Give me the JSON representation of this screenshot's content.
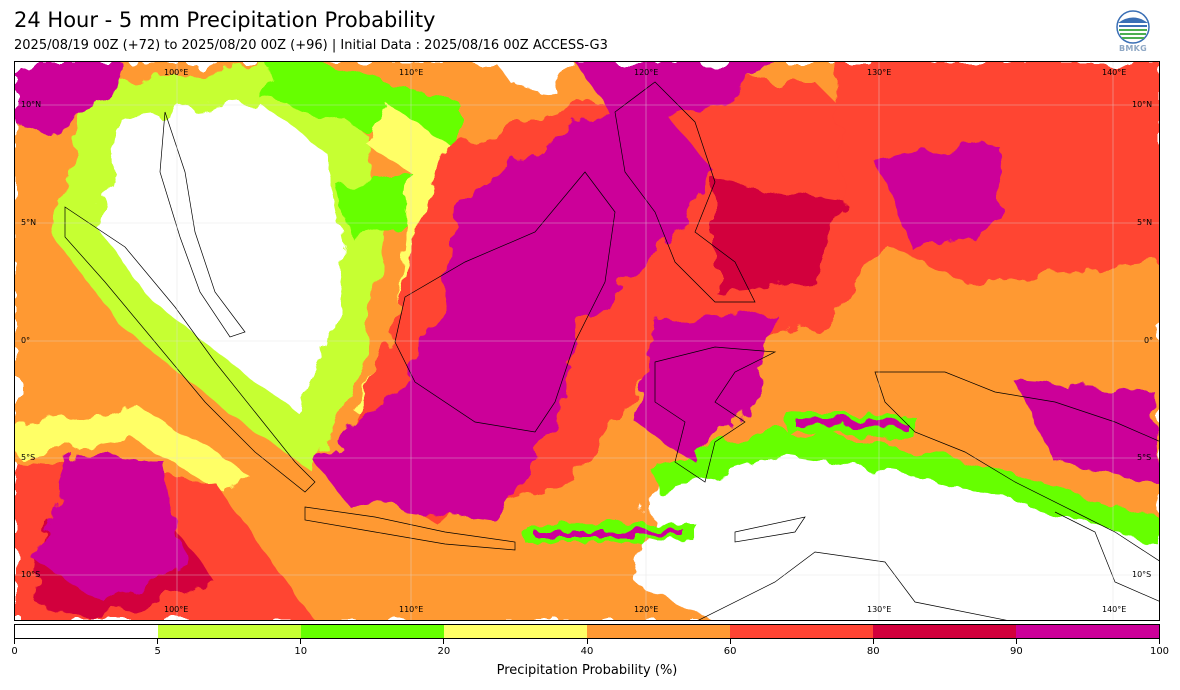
{
  "header": {
    "title": "24 Hour - 5 mm Precipitation Probability",
    "subtitle": "2025/08/19 00Z (+72) to 2025/08/20 00Z (+96) | Initial Data : 2025/08/16 00Z ACCESS-G3",
    "logo_text": "BMKG"
  },
  "map": {
    "lon_labels": [
      "100°E",
      "110°E",
      "120°E",
      "130°E",
      "140°E"
    ],
    "lat_labels": [
      "10°N",
      "5°N",
      "0°",
      "5°S",
      "10°S"
    ],
    "lon_range": [
      95,
      144
    ],
    "lat_range": [
      -12,
      12
    ],
    "colors": {
      "white": "#ffffff",
      "lime": "#c6ff33",
      "green": "#66ff00",
      "yellow": "#ffff66",
      "orange": "#ff9933",
      "red": "#ff4433",
      "crimson": "#d2003c",
      "magenta": "#cc0099"
    }
  },
  "colorbar": {
    "ticks": [
      "0",
      "5",
      "10",
      "20",
      "40",
      "60",
      "80",
      "90",
      "100"
    ],
    "colors": [
      "#ffffff",
      "#c6ff33",
      "#66ff00",
      "#ffff66",
      "#ff9933",
      "#ff4433",
      "#d2003c",
      "#cc0099"
    ],
    "label": "Precipitation Probability (%)"
  }
}
